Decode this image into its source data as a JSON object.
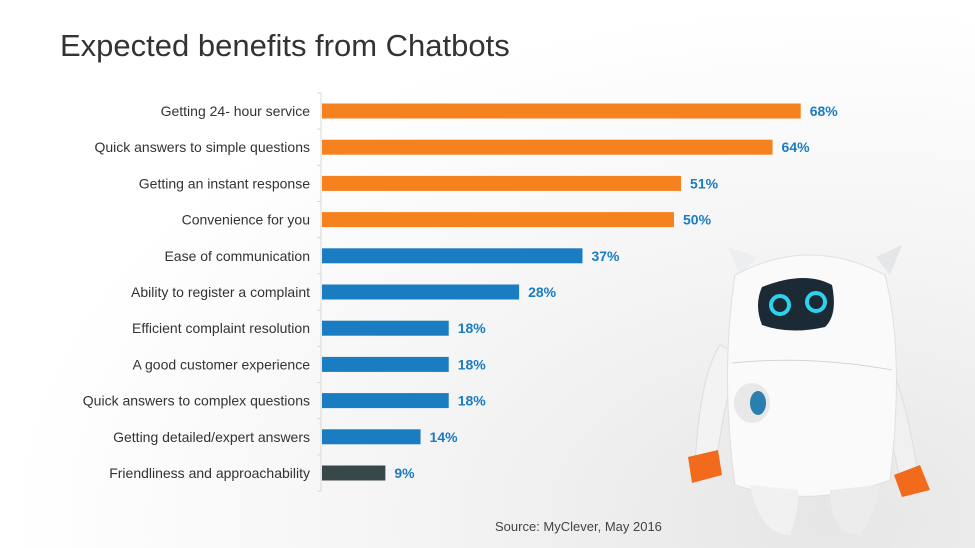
{
  "chart_data": {
    "type": "bar",
    "orientation": "horizontal",
    "title": "Expected benefits from Chatbots",
    "categories": [
      "Getting 24- hour service",
      "Quick answers to simple questions",
      "Getting an instant response",
      "Convenience for you",
      "Ease of communication",
      "Ability to register a complaint",
      "Efficient complaint resolution",
      "A good customer experience",
      "Quick answers to complex questions",
      "Getting detailed/expert answers",
      "Friendliness and approachability"
    ],
    "values": [
      68,
      64,
      51,
      50,
      37,
      28,
      18,
      18,
      18,
      14,
      9
    ],
    "value_labels": [
      "68%",
      "64%",
      "51%",
      "50%",
      "37%",
      "28%",
      "18%",
      "18%",
      "18%",
      "14%",
      "9%"
    ],
    "bar_colors": [
      "#f5821f",
      "#f5821f",
      "#f5821f",
      "#f5821f",
      "#1a7cc1",
      "#1a7cc1",
      "#1a7cc1",
      "#1a7cc1",
      "#1a7cc1",
      "#1a7cc1",
      "#37474a"
    ],
    "label_color": "#1a7cc1",
    "xlim": [
      0,
      100
    ],
    "grid": false,
    "legend": "none",
    "xlabel": "",
    "ylabel": ""
  },
  "source": "Source: MyClever, May 2016",
  "image": {
    "robot": "robot-illustration"
  }
}
